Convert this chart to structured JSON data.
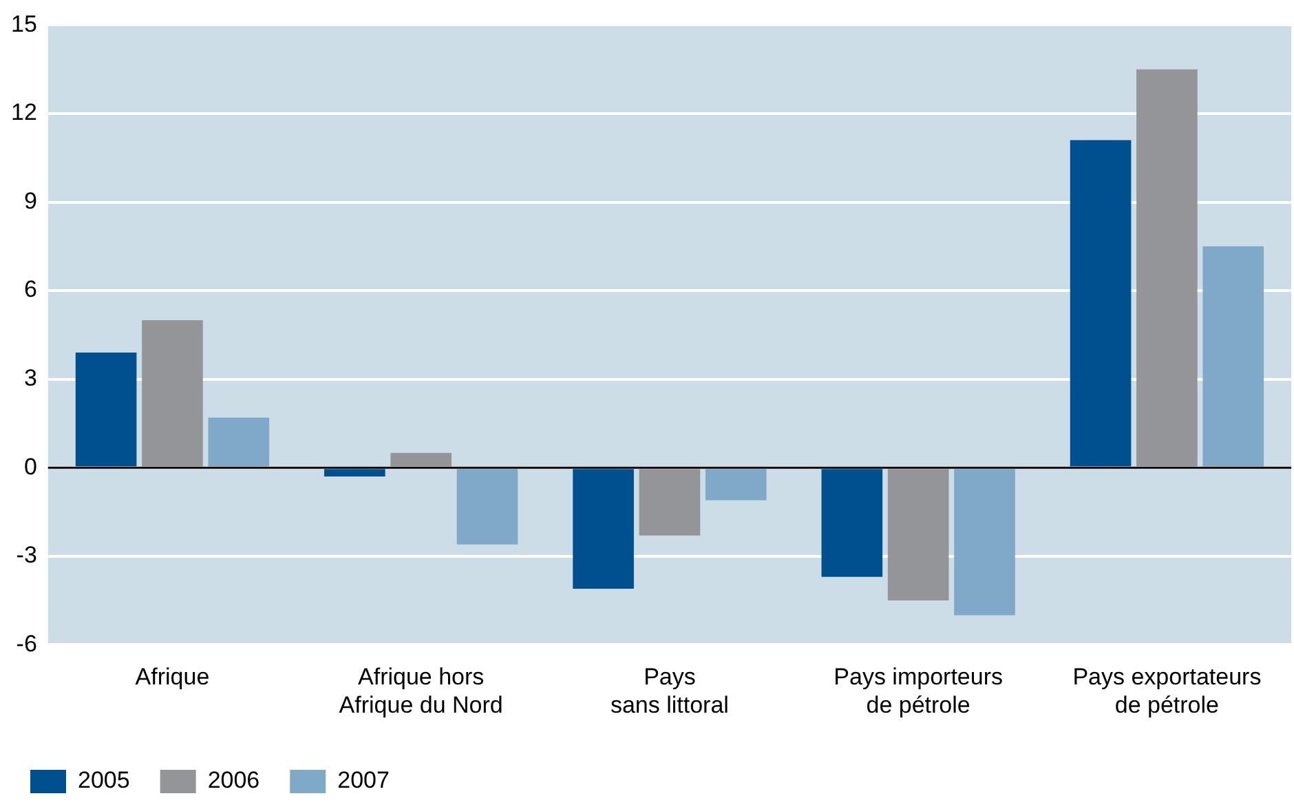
{
  "chart_data": {
    "type": "bar",
    "categories": [
      "Afrique",
      "Afrique hors\nAfrique du Nord",
      "Pays\nsans littoral",
      "Pays importeurs\nde pétrole",
      "Pays exportateurs\nde pétrole"
    ],
    "series": [
      {
        "name": "2005",
        "color": "#00508f",
        "values": [
          3.9,
          -0.3,
          -4.1,
          -3.7,
          11.1
        ]
      },
      {
        "name": "2006",
        "color": "#939598",
        "values": [
          5.0,
          0.5,
          -2.3,
          -4.5,
          13.5
        ]
      },
      {
        "name": "2007",
        "color": "#7fa8c9",
        "values": [
          1.7,
          -2.6,
          -1.1,
          -5.0,
          7.5
        ]
      }
    ],
    "ylim": [
      -6,
      15
    ],
    "yticks": [
      -6,
      -3,
      0,
      3,
      6,
      9,
      12,
      15
    ],
    "grid": "y",
    "legend": "bottom left"
  }
}
